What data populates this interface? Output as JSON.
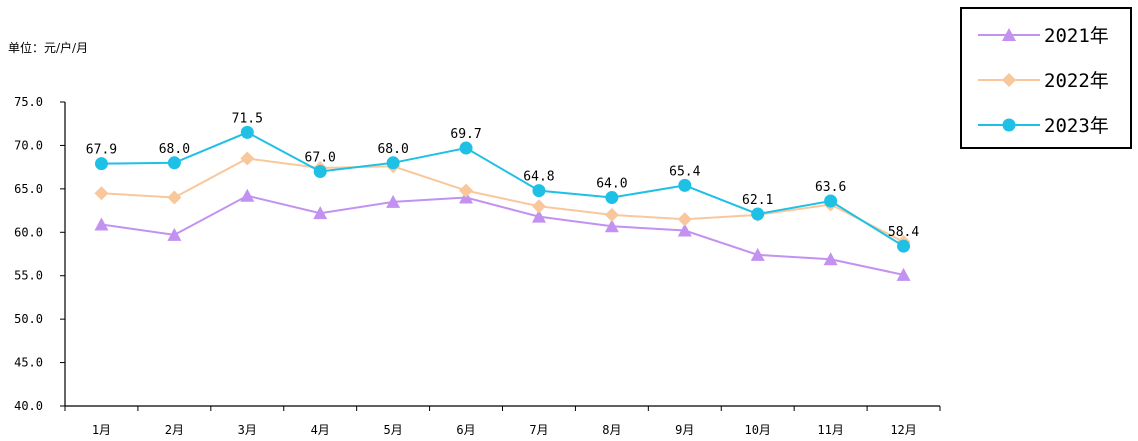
{
  "chart_data": {
    "type": "line",
    "unit_label": "单位：元/户/月",
    "categories": [
      "1月",
      "2月",
      "3月",
      "4月",
      "5月",
      "6月",
      "7月",
      "8月",
      "9月",
      "10月",
      "11月",
      "12月"
    ],
    "ylim": [
      40,
      75
    ],
    "yticks": [
      "40.0",
      "45.0",
      "50.0",
      "55.0",
      "60.0",
      "65.0",
      "70.0",
      "75.0"
    ],
    "grid": false,
    "legend_position": "top-right",
    "series": [
      {
        "name": "2021年",
        "color": "#c391f0",
        "marker": "triangle",
        "values": [
          60.9,
          59.7,
          64.2,
          62.2,
          63.5,
          64.0,
          61.8,
          60.7,
          60.2,
          57.4,
          56.9,
          55.1
        ]
      },
      {
        "name": "2022年",
        "color": "#f8c89c",
        "marker": "diamond",
        "values": [
          64.5,
          64.0,
          68.5,
          67.4,
          67.6,
          64.8,
          63.0,
          62.0,
          61.5,
          62.0,
          63.2,
          58.9
        ]
      },
      {
        "name": "2023年",
        "color": "#1ec0e6",
        "marker": "circle",
        "values": [
          67.9,
          68.0,
          71.5,
          67.0,
          68.0,
          69.7,
          64.8,
          64.0,
          65.4,
          62.1,
          63.6,
          58.4
        ],
        "data_labels": [
          "67.9",
          "68.0",
          "71.5",
          "67.0",
          "68.0",
          "69.7",
          "64.8",
          "64.0",
          "65.4",
          "62.1",
          "63.6",
          "58.4"
        ]
      }
    ]
  }
}
